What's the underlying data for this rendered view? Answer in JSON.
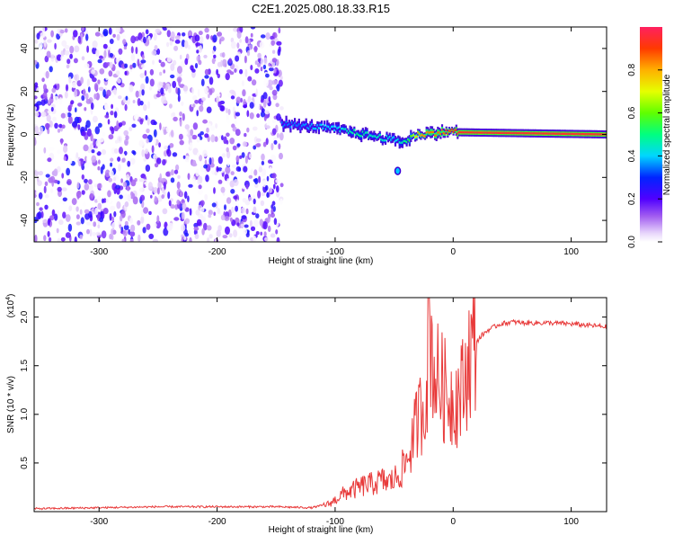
{
  "title": "C2E1.2025.080.18.33.R15",
  "colors": {
    "accent_line": "#e83a3a",
    "spectrogram_scatter": "#7a2be6",
    "spectrogram_light": "#c9b3f2"
  },
  "chart_data": [
    {
      "type": "heatmap",
      "title": "",
      "xlabel": "Height of straight line (km)",
      "ylabel": "Frequency (Hz)",
      "xlim": [
        -355,
        130
      ],
      "ylim": [
        -50,
        50
      ],
      "xticks": [
        -300,
        -200,
        -100,
        0,
        100
      ],
      "yticks": [
        -40,
        -20,
        0,
        20,
        40
      ],
      "xticklabels": [
        "-300",
        "-200",
        "-100",
        "0",
        "100"
      ],
      "yticklabels": [
        "-40",
        "-20",
        "0",
        "20",
        "40"
      ],
      "colorbar": {
        "label": "Normalized spectral amplitude",
        "range": [
          0,
          1
        ],
        "ticks": [
          "0.0",
          "0.2",
          "0.4",
          "0.6",
          "0.8"
        ],
        "tick_values": [
          0.0,
          0.2,
          0.4,
          0.6,
          0.8
        ]
      },
      "signal_trace": {
        "x": [
          -145,
          -130,
          -115,
          -100,
          -90,
          -80,
          -70,
          -60,
          -50,
          -40,
          -35,
          -30,
          -20,
          -10,
          0,
          5,
          130
        ],
        "y": [
          5,
          4,
          3.5,
          2.5,
          1.5,
          0.5,
          -0.5,
          -1.5,
          -2.5,
          -3.5,
          -1,
          0,
          0.5,
          1,
          1.5,
          1,
          0
        ],
        "amplitude": [
          0.35,
          0.35,
          0.4,
          0.4,
          0.45,
          0.5,
          0.45,
          0.45,
          0.4,
          0.5,
          0.6,
          0.8,
          0.85,
          0.85,
          0.9,
          0.95,
          0.95
        ]
      }
    },
    {
      "type": "line",
      "title": "",
      "xlabel": "Height of straight line (km)",
      "ylabel": "SNR (10 * v/v)",
      "yscale_label": "(x10",
      "yscale_exp": "4",
      "yscale_close": ")",
      "xlim": [
        -355,
        130
      ],
      "ylim": [
        0,
        2.2
      ],
      "xticks": [
        -300,
        -200,
        -100,
        0,
        100
      ],
      "yticks": [
        0.5,
        1.0,
        1.5,
        2.0
      ],
      "xticklabels": [
        "-300",
        "-200",
        "-100",
        "0",
        "100"
      ],
      "yticklabels": [
        "0.5",
        "1.0",
        "1.5",
        "2.0"
      ],
      "series": [
        {
          "color": "#e83a3a",
          "x": [
            -355,
            -300,
            -250,
            -200,
            -150,
            -120,
            -105,
            -100,
            -95,
            -90,
            -85,
            -80,
            -75,
            -70,
            -65,
            -60,
            -55,
            -50,
            -45,
            -40,
            -35,
            -30,
            -25,
            -22,
            -20,
            -18,
            -15,
            -10,
            -5,
            0,
            5,
            10,
            12,
            15,
            20,
            25,
            30,
            35,
            40,
            50,
            60,
            80,
            100,
            120,
            130
          ],
          "y": [
            0.03,
            0.04,
            0.05,
            0.05,
            0.05,
            0.04,
            0.08,
            0.12,
            0.17,
            0.2,
            0.22,
            0.25,
            0.27,
            0.28,
            0.3,
            0.32,
            0.3,
            0.33,
            0.4,
            0.5,
            0.7,
            0.95,
            1.1,
            1.4,
            2.1,
            1.6,
            1.4,
            1.3,
            1.2,
            1.15,
            1.2,
            1.3,
            1.55,
            1.65,
            1.75,
            1.82,
            1.87,
            1.9,
            1.93,
            1.95,
            1.94,
            1.94,
            1.93,
            1.91,
            1.9
          ]
        }
      ]
    }
  ]
}
